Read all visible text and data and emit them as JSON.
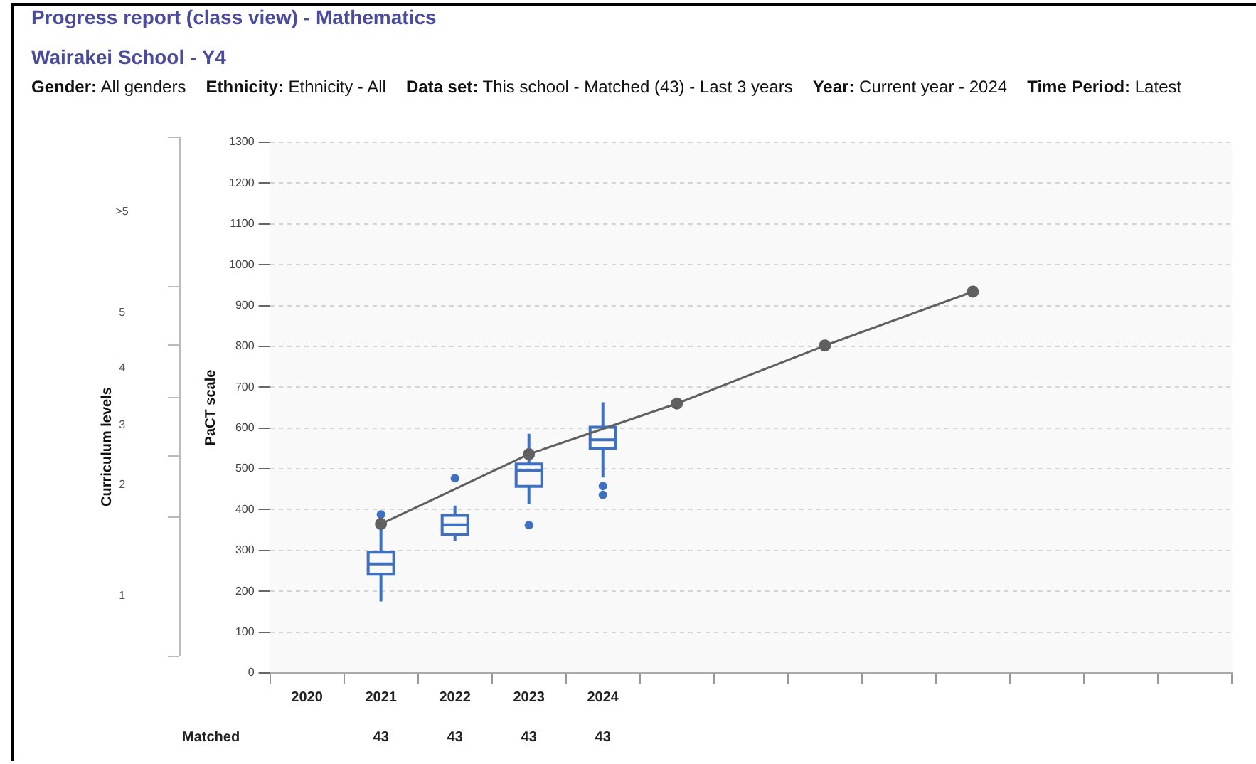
{
  "chart_data": {
    "type": "box",
    "title": "Progress report (class view) - Mathematics",
    "subtitle": "Wairakei School - Y4",
    "annotations": [
      "Gender: All genders",
      "Ethnicity: Ethnicity - All",
      "Data set: This school - Matched (43) - Last 3 years",
      "Year: Current year - 2024",
      "Time Period: Latest",
      "Curriculum levels",
      ">5",
      "5",
      "4",
      "3",
      "2",
      "1",
      "Matched",
      "43",
      "43",
      "43",
      "43"
    ],
    "categories": [
      "2020",
      "2021",
      "2022",
      "2023",
      "2024",
      null,
      null,
      null,
      null,
      null,
      null,
      null,
      null
    ],
    "series": [
      {
        "color": "#3f6fbf",
        "boxes": [
          null,
          {
            "low": 175,
            "q1": 242,
            "median": 267,
            "q3": 296,
            "high": 362,
            "outliers": [
              388
            ]
          },
          {
            "low": 324,
            "q1": 340,
            "median": 363,
            "q3": 386,
            "high": 410,
            "outliers": [
              477
            ]
          },
          {
            "low": 413,
            "q1": 457,
            "median": 496,
            "q3": 512,
            "high": 586,
            "outliers": [
              362
            ]
          },
          {
            "low": 479,
            "q1": 550,
            "median": 571,
            "q3": 602,
            "high": 663,
            "outliers": [
              458,
              436
            ]
          },
          null,
          null,
          null,
          null,
          null,
          null,
          null,
          null
        ]
      },
      {
        "type": "line",
        "color": "#606060",
        "marker": "circle",
        "values": [
          null,
          365,
          null,
          536,
          null,
          660,
          null,
          802,
          null,
          934,
          null,
          null,
          null
        ]
      }
    ],
    "ylabel": "PaCT scale",
    "ylim": [
      0,
      1300
    ],
    "yticks": [
      0,
      100,
      200,
      300,
      400,
      500,
      600,
      700,
      800,
      900,
      1000,
      1100,
      1200,
      1300
    ],
    "grid": "y",
    "legend": false
  }
}
